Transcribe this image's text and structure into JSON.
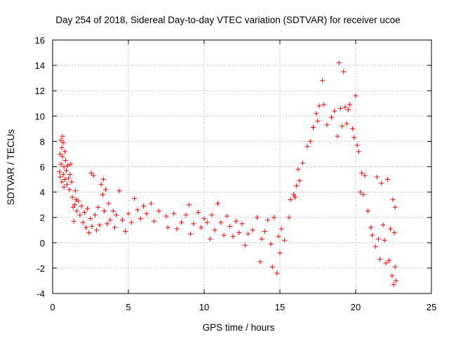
{
  "chart_data": {
    "type": "scatter",
    "title": "Day 254 of 2018, Sidereal Day-to-day VTEC variation (SDTVAR) for receiver ucoe",
    "xlabel": "GPS time / hours",
    "ylabel": "SDTVAR / TECUs",
    "xlim": [
      0,
      25
    ],
    "ylim": [
      -4,
      16
    ],
    "xticks": [
      "0",
      "5",
      "10",
      "15",
      "20",
      "25"
    ],
    "yticks": [
      "-4",
      "-2",
      "0",
      "2",
      "4",
      "6",
      "8",
      "10",
      "12",
      "14",
      "16"
    ],
    "grid": true,
    "marker": "+",
    "color": "#ff0000",
    "series": [
      {
        "name": "SDTVAR",
        "points": [
          [
            0.45,
            5.6
          ],
          [
            0.5,
            5.2
          ],
          [
            0.5,
            7.0
          ],
          [
            0.55,
            6.2
          ],
          [
            0.55,
            8.1
          ],
          [
            0.6,
            7.5
          ],
          [
            0.6,
            4.8
          ],
          [
            0.65,
            8.4
          ],
          [
            0.65,
            6.8
          ],
          [
            0.7,
            5.4
          ],
          [
            0.7,
            7.9
          ],
          [
            0.75,
            6.0
          ],
          [
            0.75,
            4.4
          ],
          [
            0.8,
            7.2
          ],
          [
            0.8,
            5.0
          ],
          [
            0.85,
            6.5
          ],
          [
            0.9,
            5.7
          ],
          [
            0.95,
            4.6
          ],
          [
            1.0,
            6.1
          ],
          [
            1.05,
            5.1
          ],
          [
            1.1,
            4.2
          ],
          [
            1.15,
            5.4
          ],
          [
            1.2,
            6.2
          ],
          [
            1.25,
            4.8
          ],
          [
            1.3,
            3.6
          ],
          [
            1.35,
            2.8
          ],
          [
            1.4,
            1.7
          ],
          [
            1.45,
            3.0
          ],
          [
            1.5,
            4.1
          ],
          [
            1.55,
            3.4
          ],
          [
            1.6,
            2.5
          ],
          [
            1.7,
            3.3
          ],
          [
            1.8,
            2.2
          ],
          [
            1.9,
            2.9
          ],
          [
            2.0,
            1.6
          ],
          [
            2.1,
            2.4
          ],
          [
            2.2,
            1.2
          ],
          [
            2.3,
            2.7
          ],
          [
            2.4,
            0.8
          ],
          [
            2.5,
            1.9
          ],
          [
            2.55,
            5.5
          ],
          [
            2.6,
            1.3
          ],
          [
            2.7,
            5.3
          ],
          [
            2.8,
            2.2
          ],
          [
            2.9,
            1.0
          ],
          [
            3.0,
            2.8
          ],
          [
            3.1,
            1.4
          ],
          [
            3.2,
            4.6
          ],
          [
            3.3,
            3.8
          ],
          [
            3.35,
            5.0
          ],
          [
            3.4,
            2.5
          ],
          [
            3.5,
            4.2
          ],
          [
            3.6,
            1.5
          ],
          [
            3.7,
            3.1
          ],
          [
            3.8,
            1.8
          ],
          [
            4.0,
            2.5
          ],
          [
            4.1,
            1.2
          ],
          [
            4.2,
            2.2
          ],
          [
            4.4,
            4.1
          ],
          [
            4.6,
            1.8
          ],
          [
            4.8,
            0.9
          ],
          [
            5.0,
            2.3
          ],
          [
            5.2,
            1.6
          ],
          [
            5.4,
            3.5
          ],
          [
            5.6,
            2.6
          ],
          [
            5.8,
            1.9
          ],
          [
            6.0,
            2.9
          ],
          [
            6.2,
            2.3
          ],
          [
            6.5,
            3.1
          ],
          [
            6.7,
            1.7
          ],
          [
            7.0,
            2.5
          ],
          [
            7.5,
            2.1
          ],
          [
            7.6,
            1.2
          ],
          [
            8.0,
            2.3
          ],
          [
            8.2,
            1.1
          ],
          [
            8.5,
            1.6
          ],
          [
            8.8,
            2.2
          ],
          [
            9.0,
            3.0
          ],
          [
            9.1,
            0.7
          ],
          [
            9.3,
            1.5
          ],
          [
            9.6,
            2.4
          ],
          [
            9.8,
            1.2
          ],
          [
            10.0,
            1.9
          ],
          [
            10.2,
            1.6
          ],
          [
            10.4,
            0.3
          ],
          [
            10.5,
            2.2
          ],
          [
            10.7,
            1.0
          ],
          [
            10.9,
            3.1
          ],
          [
            11.1,
            1.6
          ],
          [
            11.3,
            0.6
          ],
          [
            11.5,
            2.1
          ],
          [
            11.7,
            1.3
          ],
          [
            11.9,
            0.5
          ],
          [
            12.1,
            1.7
          ],
          [
            12.3,
            0.8
          ],
          [
            12.5,
            1.5
          ],
          [
            12.7,
            -0.2
          ],
          [
            12.9,
            0.7
          ],
          [
            13.2,
            1.0
          ],
          [
            13.5,
            2.0
          ],
          [
            13.7,
            -1.5
          ],
          [
            13.8,
            0.3
          ],
          [
            14.0,
            0.9
          ],
          [
            14.2,
            1.8
          ],
          [
            14.4,
            -0.1
          ],
          [
            14.5,
            -1.9
          ],
          [
            14.6,
            2.0
          ],
          [
            14.8,
            -2.4
          ],
          [
            14.9,
            0.5
          ],
          [
            15.0,
            -0.8
          ],
          [
            15.1,
            1.1
          ],
          [
            15.3,
            0.2
          ],
          [
            15.6,
            2.0
          ],
          [
            15.7,
            3.4
          ],
          [
            15.9,
            3.8
          ],
          [
            16.0,
            3.6
          ],
          [
            16.1,
            4.5
          ],
          [
            16.2,
            5.8
          ],
          [
            16.3,
            4.9
          ],
          [
            16.5,
            6.3
          ],
          [
            16.8,
            7.6
          ],
          [
            17.0,
            8.0
          ],
          [
            17.2,
            9.1
          ],
          [
            17.4,
            10.2
          ],
          [
            17.5,
            9.6
          ],
          [
            17.6,
            10.8
          ],
          [
            17.8,
            12.8
          ],
          [
            17.9,
            10.9
          ],
          [
            18.1,
            9.3
          ],
          [
            18.4,
            9.9
          ],
          [
            18.6,
            10.4
          ],
          [
            18.8,
            8.4
          ],
          [
            18.9,
            14.2
          ],
          [
            19.0,
            10.6
          ],
          [
            19.1,
            9.2
          ],
          [
            19.2,
            13.5
          ],
          [
            19.3,
            10.7
          ],
          [
            19.4,
            9.4
          ],
          [
            19.5,
            10.5
          ],
          [
            19.6,
            10.9
          ],
          [
            19.8,
            9.0
          ],
          [
            19.9,
            8.3
          ],
          [
            20.0,
            11.6
          ],
          [
            20.1,
            7.7
          ],
          [
            20.2,
            7.2
          ],
          [
            20.3,
            4.0
          ],
          [
            20.4,
            5.5
          ],
          [
            20.5,
            3.8
          ],
          [
            20.6,
            5.3
          ],
          [
            20.8,
            2.5
          ],
          [
            21.0,
            1.2
          ],
          [
            21.1,
            0.6
          ],
          [
            21.3,
            -0.3
          ],
          [
            21.4,
            5.2
          ],
          [
            21.5,
            0.3
          ],
          [
            21.6,
            -1.3
          ],
          [
            21.7,
            4.7
          ],
          [
            21.8,
            1.4
          ],
          [
            21.9,
            0.2
          ],
          [
            22.0,
            -1.6
          ],
          [
            22.1,
            5.0
          ],
          [
            22.2,
            -1.4
          ],
          [
            22.3,
            1.1
          ],
          [
            22.4,
            -2.6
          ],
          [
            22.45,
            3.4
          ],
          [
            22.5,
            -3.3
          ],
          [
            22.55,
            0.8
          ],
          [
            22.6,
            -1.9
          ],
          [
            22.6,
            2.8
          ],
          [
            22.65,
            -3.0
          ]
        ]
      }
    ]
  }
}
